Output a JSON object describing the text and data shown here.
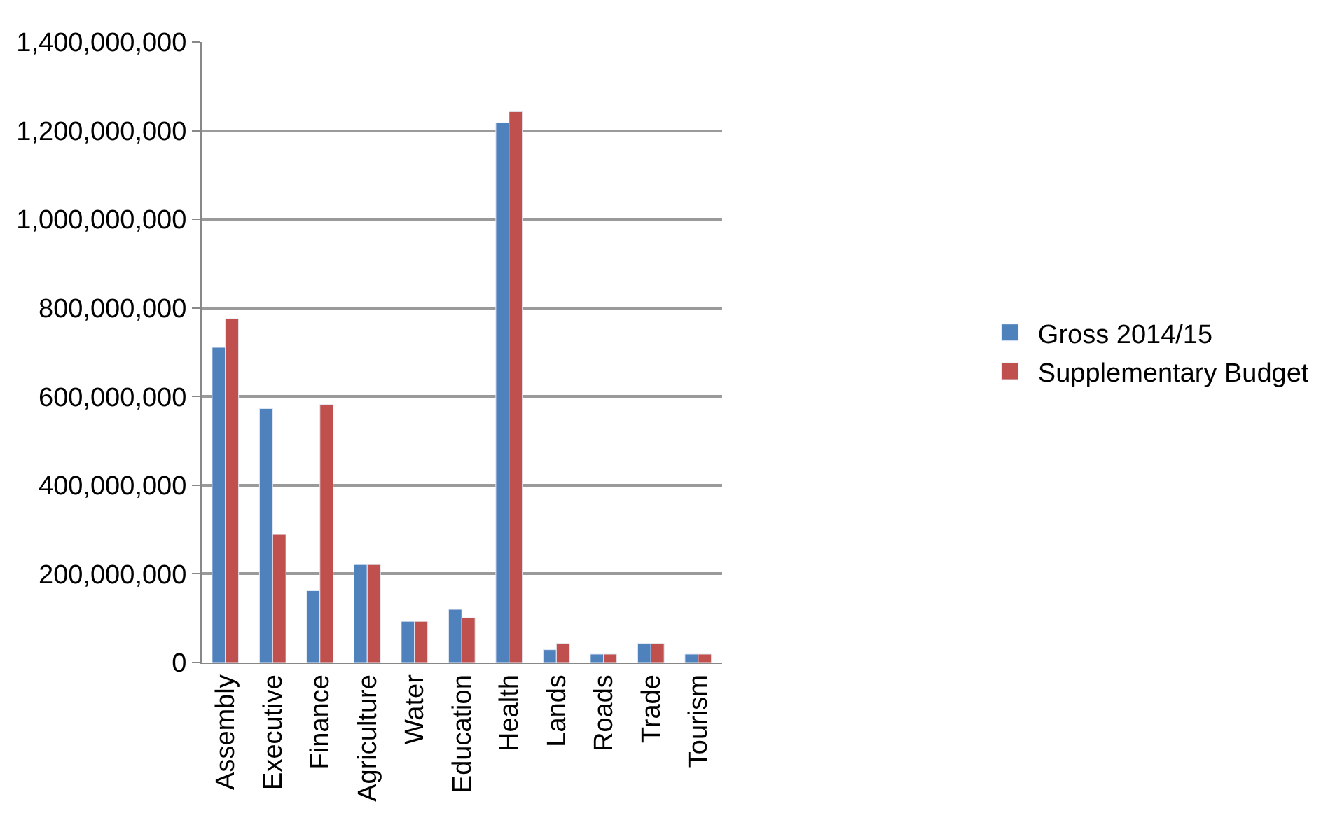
{
  "chart_data": {
    "type": "bar",
    "categories": [
      "Assembly",
      "Executive",
      "Finance",
      "Agriculture",
      "Water",
      "Education",
      "Health",
      "Lands",
      "Roads",
      "Trade",
      "Tourism"
    ],
    "series": [
      {
        "name": "Gross 2014/15",
        "color": "#4f81bd",
        "values": [
          711000000,
          573000000,
          162000000,
          221000000,
          93000000,
          120000000,
          1218000000,
          29000000,
          19000000,
          43000000,
          19000000
        ]
      },
      {
        "name": "Supplementary Budget",
        "color": "#c0504d",
        "values": [
          776000000,
          289000000,
          582000000,
          221000000,
          93000000,
          101000000,
          1243000000,
          43000000,
          19000000,
          43000000,
          19000000
        ]
      }
    ],
    "ylim": [
      0,
      1400000000
    ],
    "yticks": [
      {
        "value": 0,
        "label": "0"
      },
      {
        "value": 200000000,
        "label": "200,000,000"
      },
      {
        "value": 400000000,
        "label": "400,000,000"
      },
      {
        "value": 600000000,
        "label": "600,000,000"
      },
      {
        "value": 800000000,
        "label": "800,000,000"
      },
      {
        "value": 1000000000,
        "label": "1,000,000,000"
      },
      {
        "value": 1200000000,
        "label": "1,200,000,000"
      },
      {
        "value": 1400000000,
        "label": "1,400,000,000"
      }
    ],
    "grid": "y",
    "legend": "right"
  }
}
